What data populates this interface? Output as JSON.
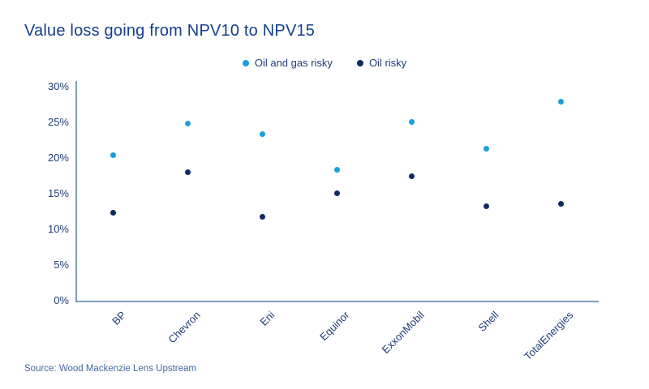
{
  "title": "Value loss going from NPV10 to NPV15",
  "source": "Source: Wood Mackenzie Lens Upstream",
  "colors": {
    "title": "#143F90",
    "label": "#1F3C78",
    "axis": "#7D9BBB",
    "source": "#44699D",
    "oil_and_gas_risky": "#18A0DC",
    "oil_risky": "#0E2A63"
  },
  "chart_data": {
    "type": "scatter",
    "title": "Value loss going from NPV10 to NPV15",
    "categories": [
      "BP",
      "Chevron",
      "Eni",
      "Equinor",
      "ExxonMobil",
      "Shell",
      "TotalEnergies"
    ],
    "series": [
      {
        "name": "Oil and gas risky",
        "color": "#18A0DC",
        "values": [
          20.4,
          24.8,
          23.3,
          18.4,
          25.1,
          21.3,
          27.9
        ]
      },
      {
        "name": "Oil risky",
        "color": "#0E2A63",
        "values": [
          12.3,
          18.0,
          11.8,
          15.1,
          17.5,
          13.2,
          13.6
        ]
      }
    ],
    "xlabel": "",
    "ylabel": "",
    "ylim": [
      0,
      30
    ],
    "y_ticks": [
      "0%",
      "5%",
      "10%",
      "15%",
      "20%",
      "25%",
      "30%"
    ],
    "grid": false,
    "legend_position": "top-center",
    "value_format": "percent"
  }
}
